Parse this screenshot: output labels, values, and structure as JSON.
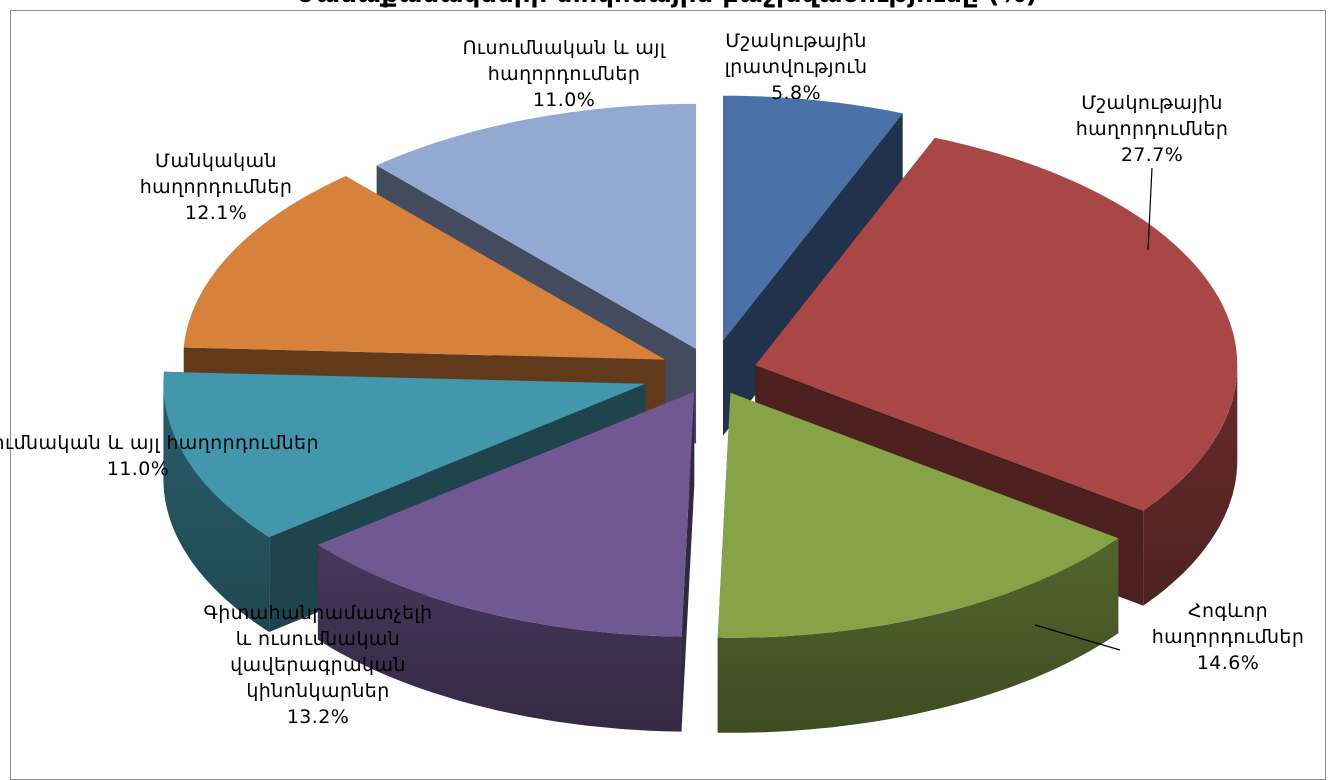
{
  "chart_data": {
    "type": "pie",
    "title": "ժամաքանակների տոկոսային բաշխվածությունը (%)",
    "style": "3d-exploded",
    "slices": [
      {
        "label": "Մշակութային լրատվություն",
        "value": 5.8,
        "display": "5.8%",
        "color": "#4a72a8"
      },
      {
        "label": "Մշակութային հաղորդումներ",
        "value": 27.7,
        "display": "27.7%",
        "color": "#a84745"
      },
      {
        "label": "Հոգևոր հաղորդումներ",
        "value": 14.6,
        "display": "14.6%",
        "color": "#86a348"
      },
      {
        "label": "Գիտահանրամատչելի և ուսումնական վավերագրական կինոնկարներ",
        "value": 13.2,
        "display": "13.2%",
        "color": "#725892"
      },
      {
        "label": "Ուսումնական և այլ հաղորդումներ",
        "value": 11.0,
        "display": "11.0%",
        "color": "#4397ad"
      },
      {
        "label": "Մանկական հաղորդումներ",
        "value": 12.1,
        "display": "12.1%",
        "color": "#d6813c"
      },
      {
        "label": "Ուսումնական և այլ հաղորդումներ",
        "value": 11.0,
        "display": "11.0%",
        "color": "#94a9d1"
      }
    ]
  }
}
